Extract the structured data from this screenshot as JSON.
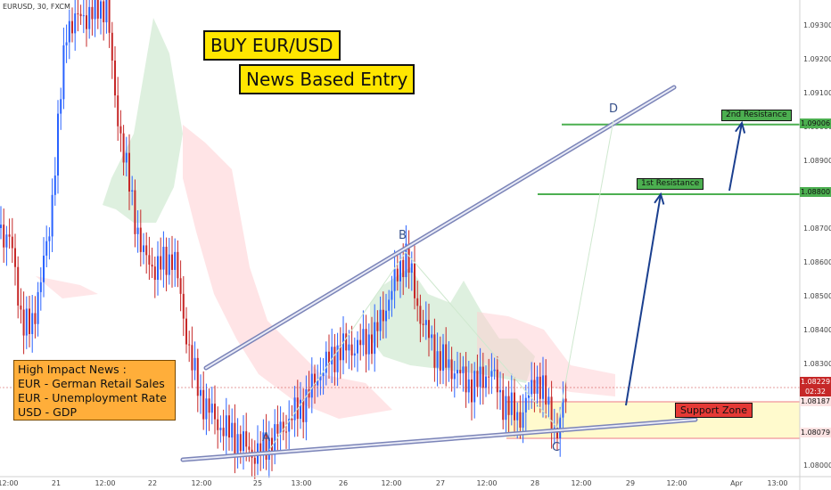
{
  "symbol_label": "EURUSD, 30, FXCM",
  "title_1": "BUY EUR/USD",
  "title_2": "News Based Entry",
  "news": {
    "heading": "High Impact News :",
    "items": [
      "EUR - German Retail Sales",
      "EUR - Unemployment Rate",
      "USD - GDP"
    ]
  },
  "levels": {
    "res1_label": "1st Resistance",
    "res2_label": "2nd Resistance",
    "support_label": "Support Zone",
    "res1_price": "1.08800",
    "res2_price": "1.09006",
    "support_top_price": "1.08187",
    "support_bottom_price": "1.08079"
  },
  "current_price": {
    "price": "1.08229",
    "countdown": "02:32"
  },
  "points": {
    "A": "A",
    "B": "B",
    "C": "C",
    "D": "D"
  },
  "colors": {
    "up": "#2962ff",
    "down": "#c62828",
    "resistance": "#4caf50",
    "support_fill": "#fff9c4",
    "support_line": "#f4a6a6",
    "trendline": "#9fa8da",
    "arrow": "#1a3f8f",
    "cloud_green": "#c8e6c9",
    "cloud_red": "#ffcdd2"
  },
  "chart_data": {
    "type": "candlestick",
    "y_range": [
      1.0795,
      1.0937
    ],
    "y_ticks": [
      "1.09300",
      "1.09200",
      "1.09100",
      "1.09000",
      "1.08900",
      "1.08700",
      "1.08600",
      "1.08500",
      "1.08400",
      "1.08300",
      "1.08100",
      "1.08000"
    ],
    "x_ticks": [
      "12:00",
      "21",
      "12:00",
      "22",
      "12:00",
      "25",
      "13:00",
      "26",
      "12:00",
      "27",
      "12:00",
      "28",
      "12:00",
      "29",
      "12:00",
      "Apr",
      "13:00"
    ],
    "approx_price_path": [
      [
        0,
        1.087
      ],
      [
        5,
        1.0868
      ],
      [
        12,
        1.0866
      ],
      [
        25,
        1.0842
      ],
      [
        35,
        1.084
      ],
      [
        55,
        1.0868
      ],
      [
        65,
        1.09
      ],
      [
        75,
        1.093
      ],
      [
        90,
        1.0932
      ],
      [
        105,
        1.0934
      ],
      [
        120,
        1.0936
      ],
      [
        128,
        1.091
      ],
      [
        140,
        1.089
      ],
      [
        150,
        1.0875
      ],
      [
        160,
        1.0862
      ],
      [
        175,
        1.0858
      ],
      [
        195,
        1.0862
      ],
      [
        205,
        1.0845
      ],
      [
        215,
        1.083
      ],
      [
        225,
        1.082
      ],
      [
        245,
        1.0812
      ],
      [
        265,
        1.0808
      ],
      [
        285,
        1.0803
      ],
      [
        300,
        1.0806
      ],
      [
        320,
        1.0812
      ],
      [
        340,
        1.0818
      ],
      [
        360,
        1.0828
      ],
      [
        380,
        1.0834
      ],
      [
        400,
        1.0835
      ],
      [
        420,
        1.0838
      ],
      [
        440,
        1.0852
      ],
      [
        455,
        1.0863
      ],
      [
        470,
        1.0845
      ],
      [
        490,
        1.0832
      ],
      [
        510,
        1.0828
      ],
      [
        530,
        1.0823
      ],
      [
        550,
        1.0828
      ],
      [
        565,
        1.0818
      ],
      [
        585,
        1.0814
      ],
      [
        600,
        1.0826
      ],
      [
        615,
        1.0818
      ],
      [
        625,
        1.0808
      ],
      [
        635,
        1.0822
      ]
    ]
  }
}
